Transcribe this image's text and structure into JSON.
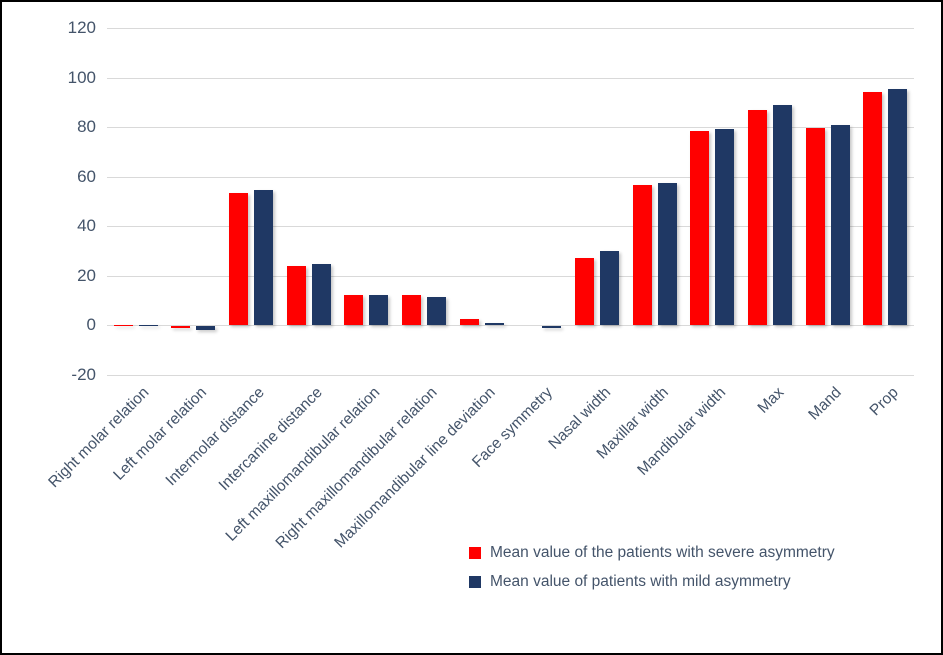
{
  "frame": {
    "background": "#ffffff",
    "border_color": "#000000"
  },
  "chart_data": {
    "type": "bar",
    "title": "",
    "xlabel": "",
    "ylabel": "",
    "categories": [
      "Right molar relation",
      "Left molar relation",
      "Intermolar distance",
      "Intercanine distance",
      "Left maxillomandibular relation",
      "Right maxillomandibular relation",
      "Maxillomandibular line deviation",
      "Face symmetry",
      "Nasal width",
      "Maxillar width",
      "Mandibular width",
      "Max",
      "Mand",
      "Prop"
    ],
    "series": [
      {
        "name": "Mean value of the patients with severe asymmetry",
        "color": "#ff0000",
        "values": [
          0.2,
          -1,
          53.5,
          24,
          12,
          12,
          2.5,
          0,
          27,
          56.5,
          78.5,
          87,
          79.5,
          94
        ]
      },
      {
        "name": "Mean value of patients with mild asymmetry",
        "color": "#1f3864",
        "values": [
          0.2,
          -1.5,
          54.5,
          24.5,
          12,
          11.5,
          0.8,
          -1,
          30,
          57.5,
          79,
          89,
          81,
          95.5
        ]
      }
    ],
    "ylim": [
      -20,
      120
    ],
    "yticks": [
      120,
      100,
      80,
      60,
      40,
      20,
      0,
      -20
    ],
    "grid": true,
    "gridline_color": "#d9d9d9",
    "tick_label_color": "#44546a",
    "legend_position": "bottom-right"
  }
}
